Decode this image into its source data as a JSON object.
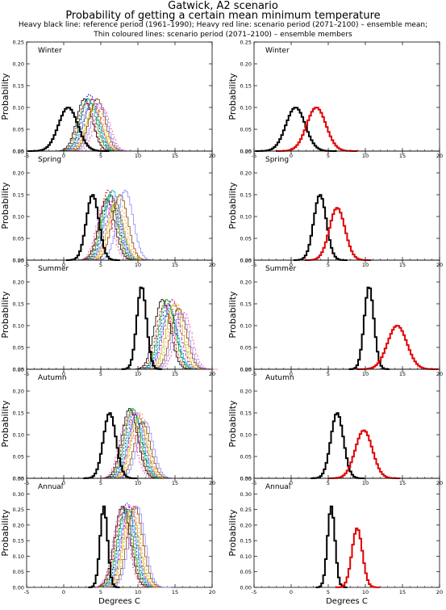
{
  "header": {
    "title": "Gatwick, A2 scenario",
    "subtitle": "Probability of getting a certain mean minimum temperature",
    "note_line1": "Heavy black line: reference period (1961–1990); Heavy red line: scenario period (2071–2100) – ensemble mean;",
    "note_line2": "Thin coloured lines: scenario period (2071–2100) – ensemble members"
  },
  "y_axis_label": "Probability",
  "x_axis_label": "Degrees C",
  "colors": {
    "reference": "#000000",
    "scenario_mean": "#e00000",
    "members": [
      "#000000",
      "#e00000",
      "#00aa00",
      "#0000ff",
      "#00bbbb",
      "#cc00cc",
      "#bbbb00",
      "#ff8800",
      "#884400",
      "#8888ff",
      "#ff55aa"
    ]
  },
  "chart_data": {
    "type": "histogram-step",
    "layout": "5 rows x 2 columns; left column = ensemble members, right column = ensemble mean",
    "xlim": [
      -5,
      20
    ],
    "xticks": [
      -5,
      0,
      5,
      10,
      15,
      20
    ],
    "xlabel": "Degrees C",
    "ylabel": "Probability",
    "panels": [
      {
        "season": "Winter",
        "ylim": [
          0,
          0.25
        ],
        "yticks": [
          0.0,
          0.05,
          0.1,
          0.15,
          0.2,
          0.25
        ],
        "reference": {
          "mean": 0.6,
          "sd": 1.3,
          "peak": 0.1
        },
        "scenario_mean": {
          "mean": 3.4,
          "sd": 1.3,
          "peak": 0.1
        },
        "members": [
          {
            "mean": 2.8,
            "peak": 0.12
          },
          {
            "mean": 3.0,
            "peak": 0.11
          },
          {
            "mean": 3.3,
            "peak": 0.12
          },
          {
            "mean": 3.5,
            "peak": 0.13
          },
          {
            "mean": 3.7,
            "peak": 0.11
          },
          {
            "mean": 3.9,
            "peak": 0.12
          },
          {
            "mean": 4.1,
            "peak": 0.1
          },
          {
            "mean": 4.3,
            "peak": 0.11
          },
          {
            "mean": 4.5,
            "peak": 0.12
          },
          {
            "mean": 4.8,
            "peak": 0.11
          },
          {
            "mean": 5.2,
            "peak": 0.1
          }
        ]
      },
      {
        "season": "Spring",
        "ylim": [
          0,
          0.25
        ],
        "yticks": [
          0.0,
          0.05,
          0.1,
          0.15,
          0.2,
          0.25
        ],
        "reference": {
          "mean": 3.9,
          "sd": 0.85,
          "peak": 0.15
        },
        "scenario_mean": {
          "mean": 6.2,
          "sd": 1.05,
          "peak": 0.12
        },
        "members": [
          {
            "mean": 5.8,
            "peak": 0.14
          },
          {
            "mean": 6.0,
            "peak": 0.16
          },
          {
            "mean": 6.2,
            "peak": 0.15
          },
          {
            "mean": 6.4,
            "peak": 0.15
          },
          {
            "mean": 6.6,
            "peak": 0.16
          },
          {
            "mean": 6.8,
            "peak": 0.14
          },
          {
            "mean": 7.0,
            "peak": 0.13
          },
          {
            "mean": 7.3,
            "peak": 0.14
          },
          {
            "mean": 7.6,
            "peak": 0.15
          },
          {
            "mean": 8.3,
            "peak": 0.16
          },
          {
            "mean": 5.5,
            "peak": 0.13
          }
        ]
      },
      {
        "season": "Summer",
        "ylim": [
          0,
          0.25
        ],
        "yticks": [
          0.0,
          0.05,
          0.1,
          0.15,
          0.2,
          0.25
        ],
        "reference": {
          "mean": 10.5,
          "sd": 0.65,
          "peak": 0.19
        },
        "scenario_mean": {
          "mean": 14.3,
          "sd": 1.3,
          "peak": 0.1
        },
        "members": [
          {
            "mean": 13.3,
            "peak": 0.16
          },
          {
            "mean": 13.6,
            "peak": 0.15
          },
          {
            "mean": 13.9,
            "peak": 0.16
          },
          {
            "mean": 14.1,
            "peak": 0.15
          },
          {
            "mean": 14.3,
            "peak": 0.14
          },
          {
            "mean": 14.6,
            "peak": 0.16
          },
          {
            "mean": 14.9,
            "peak": 0.15
          },
          {
            "mean": 15.2,
            "peak": 0.15
          },
          {
            "mean": 15.5,
            "peak": 0.14
          },
          {
            "mean": 15.8,
            "peak": 0.13
          },
          {
            "mean": 16.2,
            "peak": 0.13
          }
        ]
      },
      {
        "season": "Autumn",
        "ylim": [
          0,
          0.25
        ],
        "yticks": [
          0.0,
          0.05,
          0.1,
          0.15,
          0.2,
          0.25
        ],
        "reference": {
          "mean": 6.2,
          "sd": 0.85,
          "peak": 0.15
        },
        "scenario_mean": {
          "mean": 9.8,
          "sd": 1.15,
          "peak": 0.11
        },
        "members": [
          {
            "mean": 8.9,
            "peak": 0.16
          },
          {
            "mean": 9.1,
            "peak": 0.15
          },
          {
            "mean": 9.3,
            "peak": 0.16
          },
          {
            "mean": 9.5,
            "peak": 0.15
          },
          {
            "mean": 9.7,
            "peak": 0.14
          },
          {
            "mean": 9.9,
            "peak": 0.15
          },
          {
            "mean": 10.1,
            "peak": 0.14
          },
          {
            "mean": 10.3,
            "peak": 0.15
          },
          {
            "mean": 10.6,
            "peak": 0.13
          },
          {
            "mean": 11.0,
            "peak": 0.13
          },
          {
            "mean": 8.6,
            "peak": 0.14
          }
        ]
      },
      {
        "season": "Annual",
        "ylim": [
          0,
          0.35
        ],
        "yticks": [
          0.0,
          0.05,
          0.1,
          0.15,
          0.2,
          0.25,
          0.3,
          0.35
        ],
        "reference": {
          "mean": 5.4,
          "sd": 0.5,
          "peak": 0.26
        },
        "scenario_mean": {
          "mean": 8.9,
          "sd": 0.7,
          "peak": 0.19
        },
        "members": [
          {
            "mean": 7.9,
            "peak": 0.26
          },
          {
            "mean": 8.1,
            "peak": 0.26
          },
          {
            "mean": 8.3,
            "peak": 0.25
          },
          {
            "mean": 8.5,
            "peak": 0.27
          },
          {
            "mean": 8.7,
            "peak": 0.25
          },
          {
            "mean": 8.9,
            "peak": 0.26
          },
          {
            "mean": 9.1,
            "peak": 0.25
          },
          {
            "mean": 9.3,
            "peak": 0.26
          },
          {
            "mean": 9.6,
            "peak": 0.26
          },
          {
            "mean": 9.9,
            "peak": 0.26
          },
          {
            "mean": 7.7,
            "peak": 0.24
          }
        ]
      }
    ]
  }
}
